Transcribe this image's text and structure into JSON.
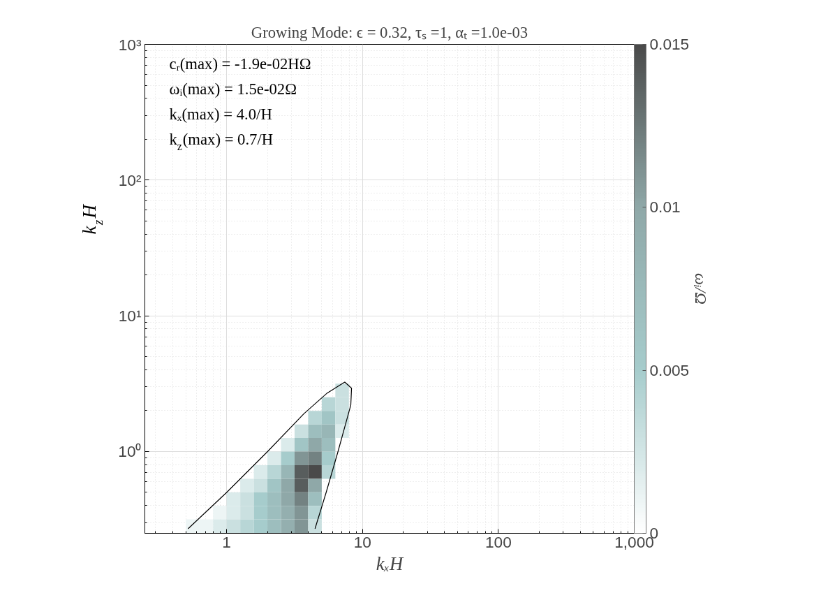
{
  "chart_data": {
    "type": "heatmap",
    "title": "Growing Mode: ϵ = 0.32, τₛ =1, αₜ =1.0e-03",
    "xlabel": "kₓH",
    "ylabel": "k$_{z}$H",
    "clabel": "ωᵢ/Ω",
    "annotations": [
      "cᵣ(max) = -1.9e-02HΩ",
      "ωᵢ(max) = 1.5e-02Ω",
      "kₓ(max) = 4.0/H",
      "k$_{z}$(max) = 0.7/H"
    ],
    "log": "xy",
    "grid": true,
    "xlim": [
      0.25,
      1000
    ],
    "ylim": [
      0.25,
      1000
    ],
    "xticks": [
      1,
      10,
      100,
      {
        "value": 1000,
        "label": "1,000"
      }
    ],
    "yticks": [
      {
        "value": 1,
        "label": "10⁰"
      },
      {
        "value": 10,
        "label": "10¹"
      },
      {
        "value": 100,
        "label": "10²"
      },
      {
        "value": 1000,
        "label": "10³"
      }
    ],
    "clim": [
      0,
      0.015
    ],
    "cticks": [
      0,
      0.005,
      0.01,
      0.015
    ],
    "colors": [
      "#ffffff",
      "#a6cccc",
      "#8fa8a8",
      "#4a4a4a"
    ],
    "x": [
      0.562,
      0.708,
      0.891,
      1.122,
      1.413,
      1.778,
      2.239,
      2.818,
      3.548,
      4.467,
      5.623,
      7.079
    ],
    "y": [
      2.818,
      2.239,
      1.778,
      1.413,
      1.122,
      0.891,
      0.708,
      0.562,
      0.447,
      0.355,
      0.282
    ],
    "cells": [
      [
        null,
        null,
        null,
        null,
        null,
        null,
        null,
        null,
        null,
        null,
        null,
        0.003
      ],
      [
        null,
        null,
        null,
        null,
        null,
        null,
        null,
        null,
        null,
        null,
        0.004,
        0.003
      ],
      [
        null,
        null,
        null,
        null,
        null,
        null,
        null,
        null,
        null,
        0.004,
        0.006,
        0.003
      ],
      [
        null,
        null,
        null,
        null,
        null,
        null,
        null,
        null,
        0.003,
        0.007,
        0.008,
        0.002
      ],
      [
        null,
        null,
        null,
        null,
        null,
        null,
        null,
        0.002,
        0.006,
        0.01,
        0.007,
        null
      ],
      [
        null,
        null,
        null,
        null,
        null,
        null,
        0.002,
        0.005,
        0.011,
        0.012,
        0.005,
        null
      ],
      [
        null,
        null,
        null,
        null,
        null,
        0.002,
        0.004,
        0.008,
        0.014,
        0.015,
        0.004,
        null
      ],
      [
        null,
        null,
        null,
        null,
        0.002,
        0.003,
        0.006,
        0.01,
        0.014,
        0.01,
        null,
        null
      ],
      [
        null,
        null,
        null,
        0.002,
        0.003,
        0.005,
        0.007,
        0.01,
        0.012,
        0.007,
        null,
        null
      ],
      [
        null,
        null,
        0.001,
        0.002,
        0.003,
        0.005,
        0.007,
        0.009,
        0.011,
        0.004,
        null,
        null
      ],
      [
        0.001,
        0.001,
        0.002,
        0.003,
        0.004,
        0.005,
        0.007,
        0.009,
        0.011,
        0.003,
        null,
        null
      ]
    ],
    "series": [
      {
        "type": "line",
        "color": "#000000",
        "x": [
          0.52,
          1.0,
          2.0,
          3.7,
          5.5,
          7.4,
          8.3,
          8.2,
          6.6,
          5.4,
          4.47
        ],
        "values": [
          0.27,
          0.5,
          1.0,
          1.9,
          2.7,
          3.25,
          2.93,
          2.2,
          1.0,
          0.5,
          0.27
        ]
      }
    ]
  }
}
